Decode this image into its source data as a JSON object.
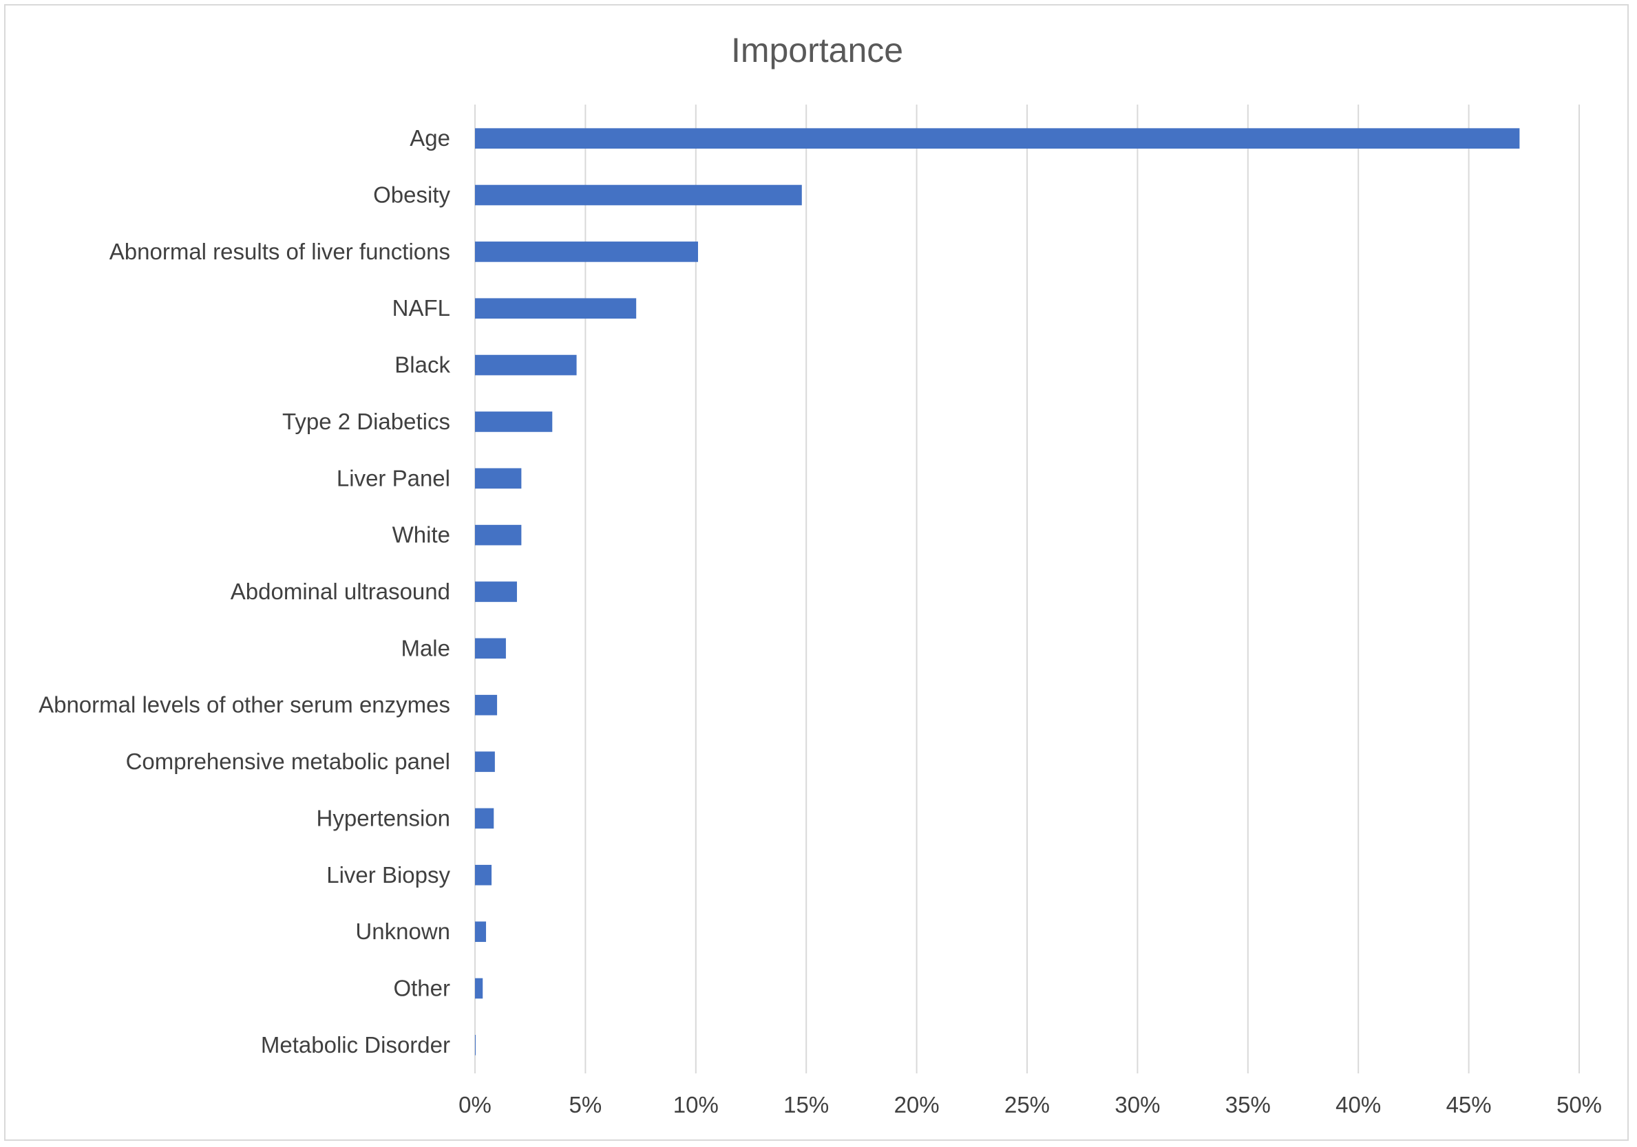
{
  "chart_data": {
    "type": "bar",
    "orientation": "horizontal",
    "title": "Importance",
    "xlabel": "",
    "ylabel": "",
    "categories": [
      "Age",
      "Obesity",
      "Abnormal results of liver functions",
      "NAFL",
      "Black",
      "Type 2 Diabetics",
      "Liver Panel",
      "White",
      "Abdominal ultrasound",
      "Male",
      "Abnormal levels of other serum enzymes",
      "Comprehensive metabolic panel",
      "Hypertension",
      "Liver Biopsy",
      "Unknown",
      "Other",
      "Metabolic Disorder"
    ],
    "values": [
      47.3,
      14.8,
      10.1,
      7.3,
      4.6,
      3.5,
      2.1,
      2.1,
      1.9,
      1.4,
      1.0,
      0.9,
      0.85,
      0.75,
      0.5,
      0.35,
      0.02
    ],
    "xlim": [
      0,
      50
    ],
    "xticks": [
      0,
      5,
      10,
      15,
      20,
      25,
      30,
      35,
      40,
      45,
      50
    ],
    "xtick_labels": [
      "0%",
      "5%",
      "10%",
      "15%",
      "20%",
      "25%",
      "30%",
      "35%",
      "40%",
      "45%",
      "50%"
    ],
    "value_format": "percent",
    "grid": "vertical",
    "legend": "none",
    "bar_color": "#4472C4"
  }
}
